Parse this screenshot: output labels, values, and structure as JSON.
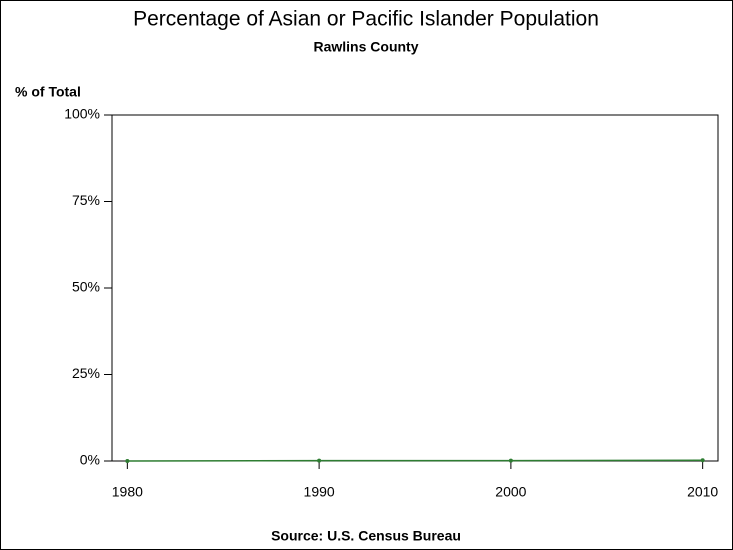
{
  "chart_data": {
    "type": "line",
    "title": "Percentage of Asian or Pacific Islander Population",
    "subtitle": "Rawlins County",
    "y_label": "% of Total",
    "source": "Source: U.S. Census Bureau",
    "x": [
      1980,
      1990,
      2000,
      2010
    ],
    "series": [
      {
        "name": "Rawlins County",
        "color": "#2e7d32",
        "values": [
          0,
          0.1,
          0.1,
          0.2
        ]
      }
    ],
    "xlim": [
      1979.2,
      2010.8
    ],
    "xticks": [
      1980,
      1990,
      2000,
      2010
    ],
    "ylim": [
      0,
      100
    ],
    "yticks": [
      {
        "value": 0,
        "label": "0%"
      },
      {
        "value": 25,
        "label": "25%"
      },
      {
        "value": 50,
        "label": "50%"
      },
      {
        "value": 75,
        "label": "75%"
      },
      {
        "value": 100,
        "label": "100%"
      }
    ]
  }
}
